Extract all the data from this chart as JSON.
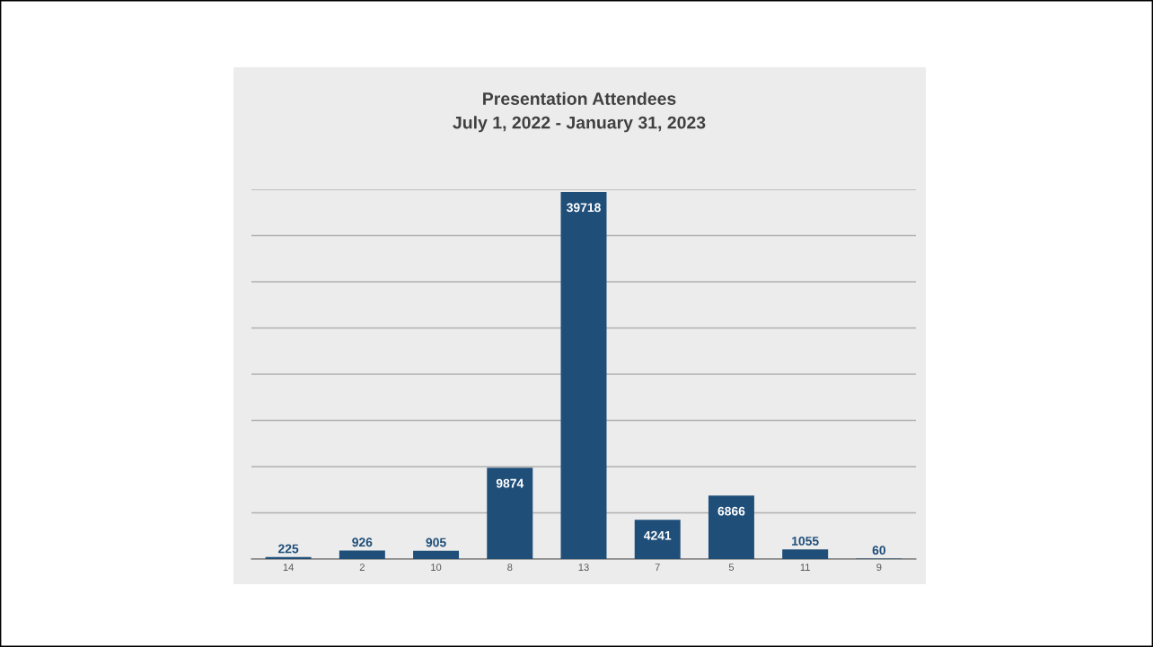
{
  "chart_data": {
    "type": "bar",
    "title": "Presentation Attendees\nJuly 1, 2022 - January 31, 2023",
    "categories": [
      "14",
      "2",
      "10",
      "8",
      "13",
      "7",
      "5",
      "11",
      "9"
    ],
    "values": [
      225,
      926,
      905,
      9874,
      39718,
      4241,
      6866,
      1055,
      60
    ],
    "color": "#1f4e79",
    "ylim": [
      0,
      40000
    ],
    "yticks": [
      {
        "value": 0,
        "label": null
      },
      {
        "value": 5000,
        "label": null
      },
      {
        "value": 10000,
        "label": null
      },
      {
        "value": 15000,
        "label": null
      },
      {
        "value": 20000,
        "label": null
      },
      {
        "value": 25000,
        "label": null
      },
      {
        "value": 30000,
        "label": null
      },
      {
        "value": 35000,
        "label": null
      },
      {
        "value": 40000,
        "label": null
      }
    ],
    "grid": "y",
    "data_labels": true,
    "tick_labels": "x"
  }
}
